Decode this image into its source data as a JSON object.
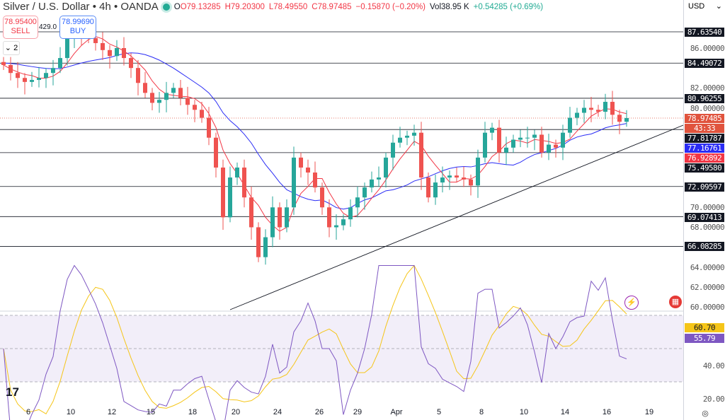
{
  "header": {
    "symbol": "Silver / U.S. Dollar • 4h • OANDA",
    "open": "O79.13285",
    "high": "H79.20300",
    "low": "L78.49550",
    "close": "C78.97485",
    "change": "−0.15870 (−0.20%)",
    "volume": "Vol38.95 K",
    "vol_change": "+0.54285 (+0.69%)"
  },
  "trade": {
    "sell_price": "78.95400",
    "sell_label": "SELL",
    "buy_price": "78.99690",
    "buy_label": "BUY",
    "spread": "429.0"
  },
  "indicators_collapsed": "2",
  "currency": "USD",
  "price_axis": [
    "86.00000",
    "82.00000",
    "80.00000",
    "70.00000",
    "68.00000",
    "64.00000",
    "62.00000",
    "60.00000"
  ],
  "levels": [
    {
      "label": "87.63540",
      "value": 87.6354
    },
    {
      "label": "84.49072",
      "value": 84.49072
    },
    {
      "label": "80.96255",
      "value": 80.96255
    },
    {
      "label": "77.81787",
      "value": 77.81787
    },
    {
      "label": "75.49580",
      "value": 75.4958
    },
    {
      "label": "72.09597",
      "value": 72.09597
    },
    {
      "label": "69.07413",
      "value": 69.07413
    },
    {
      "label": "66.08285",
      "value": 66.08285
    }
  ],
  "last_price": {
    "label": "78.97485",
    "countdown": "43:33",
    "color": "#e0533d"
  },
  "ma_slow": {
    "label": "77.16761",
    "color": "#2a2cf5"
  },
  "ma_fast": {
    "label": "76.92892",
    "color": "#f23645"
  },
  "rsi": {
    "axis": [
      "40.00",
      "20.00"
    ],
    "rsi_value": "60.70",
    "rsi_color": "#f5c518",
    "ma_value": "55.79",
    "ma_color": "#7e57c2"
  },
  "dates": [
    "6",
    "10",
    "12",
    "15",
    "18",
    "20",
    "24",
    "26",
    "29",
    "Apr",
    "5",
    "8",
    "10",
    "14",
    "16",
    "19"
  ],
  "colors": {
    "up": "#26a69a",
    "down": "#ef5350"
  },
  "candles_close": [
    84.3,
    83.5,
    83,
    82.6,
    82.8,
    83,
    83.5,
    84,
    85,
    87,
    87.8,
    87.5,
    87,
    86.5,
    85.8,
    85.2,
    86,
    85,
    84,
    82.5,
    81.5,
    80.5,
    80.8,
    81.5,
    82,
    81,
    80.3,
    79.8,
    79,
    77,
    74,
    69,
    73,
    74,
    71,
    68,
    65,
    67,
    70,
    68,
    70,
    75,
    74,
    73.5,
    72,
    70,
    68,
    68.2,
    68.8,
    70,
    71,
    72,
    72.8,
    73,
    75,
    76.5,
    77,
    77.2,
    77.5,
    73,
    71,
    72.5,
    73,
    73.2,
    73,
    72.8,
    72.2,
    75,
    77.5,
    78,
    75.5,
    76,
    76.8,
    77,
    77,
    77.3,
    75.5,
    76.3,
    76,
    77.5,
    79,
    79.5,
    80,
    79.8,
    79.6,
    80.6,
    79.3,
    78.6,
    78.97
  ]
}
